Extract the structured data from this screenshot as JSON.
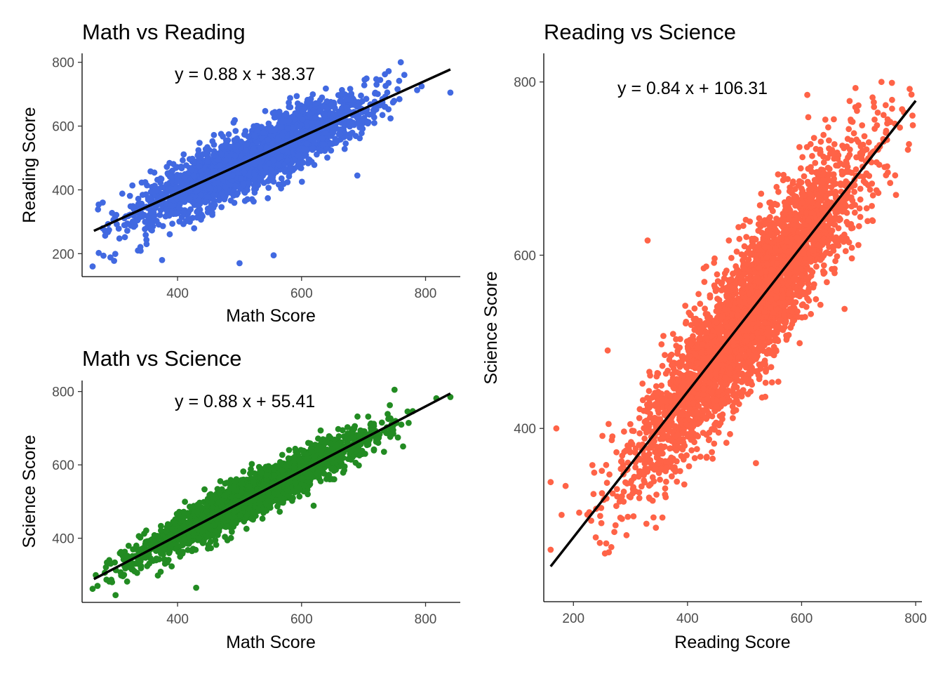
{
  "chart_data": [
    {
      "type": "scatter",
      "title": "Math vs Reading",
      "xlabel": "Math Score",
      "ylabel": "Reading Score",
      "xlim": [
        246,
        856
      ],
      "ylim": [
        128,
        828
      ],
      "xticks": [
        400,
        600,
        800
      ],
      "yticks": [
        200,
        400,
        600,
        800
      ],
      "grid": false,
      "point_color": "#4169E1",
      "series": [
        {
          "regression": {
            "slope": 0.88,
            "intercept": 38.37,
            "x_range": [
              265,
              840
            ]
          },
          "equation_label": "y =  0.88 x +  38.37",
          "point_cloud": {
            "count": 2600,
            "x_mean": 520,
            "x_sd": 92,
            "resid_sd": 45,
            "x_range": [
              262,
              842
            ],
            "y_range": [
              158,
              800
            ]
          },
          "notable_points": [
            {
              "x": 263,
              "y": 160
            },
            {
              "x": 555,
              "y": 195
            },
            {
              "x": 500,
              "y": 170
            },
            {
              "x": 690,
              "y": 445
            },
            {
              "x": 840,
              "y": 705
            },
            {
              "x": 760,
              "y": 800
            },
            {
              "x": 375,
              "y": 180
            },
            {
              "x": 350,
              "y": 230
            }
          ]
        }
      ]
    },
    {
      "type": "scatter",
      "title": "Math vs Science",
      "xlabel": "Math Score",
      "ylabel": "Science Score",
      "xlim": [
        246,
        856
      ],
      "ylim": [
        225,
        830
      ],
      "xticks": [
        400,
        600,
        800
      ],
      "yticks": [
        400,
        600,
        800
      ],
      "grid": false,
      "point_color": "#228B22",
      "series": [
        {
          "regression": {
            "slope": 0.88,
            "intercept": 55.41,
            "x_range": [
              265,
              840
            ]
          },
          "equation_label": "y =  0.88 x +  55.41",
          "point_cloud": {
            "count": 2600,
            "x_mean": 520,
            "x_sd": 92,
            "resid_sd": 28,
            "x_range": [
              262,
              842
            ],
            "y_range": [
              245,
              805
            ]
          },
          "notable_points": [
            {
              "x": 263,
              "y": 262
            },
            {
              "x": 300,
              "y": 245
            },
            {
              "x": 430,
              "y": 265
            },
            {
              "x": 840,
              "y": 785
            },
            {
              "x": 750,
              "y": 805
            },
            {
              "x": 610,
              "y": 520
            }
          ]
        }
      ]
    },
    {
      "type": "scatter",
      "title": "Reading vs Science",
      "xlabel": "Reading Score",
      "ylabel": "Science Score",
      "xlim": [
        148,
        811
      ],
      "ylim": [
        200,
        833
      ],
      "xticks": [
        200,
        400,
        600,
        800
      ],
      "yticks": [
        400,
        600,
        800
      ],
      "grid": false,
      "point_color": "#FF6347",
      "series": [
        {
          "regression": {
            "slope": 0.84,
            "intercept": 106.31,
            "x_range": [
              160,
              800
            ]
          },
          "equation_label": "y =  0.84 x +  106.31",
          "point_cloud": {
            "count": 3800,
            "x_mean": 505,
            "x_sd": 98,
            "resid_sd": 40,
            "x_range": [
              160,
              800
            ],
            "y_range": [
              250,
              800
            ]
          },
          "notable_points": [
            {
              "x": 160,
              "y": 338
            },
            {
              "x": 170,
              "y": 400
            },
            {
              "x": 160,
              "y": 260
            },
            {
              "x": 260,
              "y": 490
            },
            {
              "x": 330,
              "y": 617
            },
            {
              "x": 395,
              "y": 380
            },
            {
              "x": 795,
              "y": 750
            },
            {
              "x": 740,
              "y": 800
            },
            {
              "x": 610,
              "y": 785
            },
            {
              "x": 520,
              "y": 360
            }
          ]
        }
      ]
    }
  ]
}
